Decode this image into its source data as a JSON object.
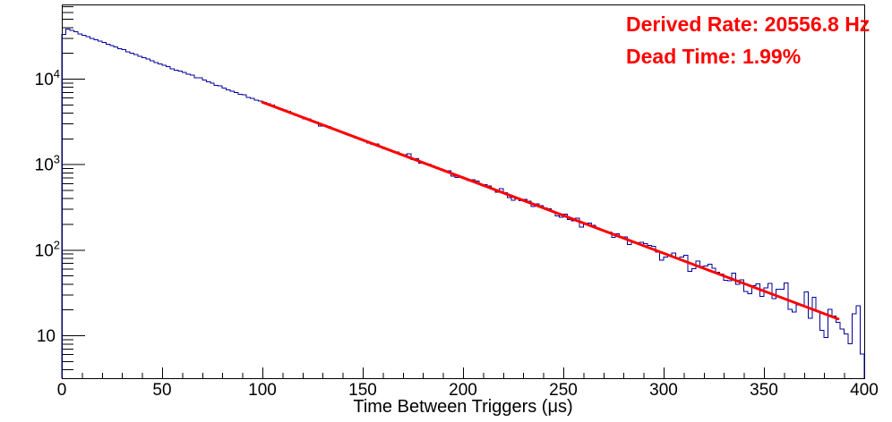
{
  "annotation": {
    "line1": "Derived Rate: 20556.8 Hz",
    "line2": "Dead Time: 1.99%",
    "color": "#ff0000"
  },
  "chart_data": {
    "type": "histogram",
    "title": "",
    "xlabel": "Time Between Triggers (μs)",
    "ylabel": "",
    "yscale": "log",
    "xlim": [
      0,
      400
    ],
    "ylim": [
      3.15,
      73600
    ],
    "x_ticks_major": [
      0,
      50,
      100,
      150,
      200,
      250,
      300,
      350,
      400
    ],
    "x_minor_step": 10,
    "y_ticks_major": [
      10,
      100,
      1000,
      10000
    ],
    "y_tick_labels": [
      "10",
      "10^2",
      "10^3",
      "10^4"
    ],
    "grid": false,
    "legend": null,
    "hist_color": "#000099",
    "axis_color": "#000000",
    "background_color": "#ffffff",
    "bin_width_us": 2,
    "n_bins": 200,
    "histogram_model": {
      "amplitude": 40500,
      "decay_per_us": 0.02033,
      "first_bin_value": 33000,
      "poisson_noise": true,
      "noise_seed": 42,
      "last_bins_override": {
        "198": 22,
        "199": 6
      }
    },
    "readings_approx": [
      {
        "t": 3,
        "counts": 38000
      },
      {
        "t": 50,
        "counts": 14600
      },
      {
        "t": 100,
        "counts": 5300
      },
      {
        "t": 150,
        "counts": 1920
      },
      {
        "t": 200,
        "counts": 700
      },
      {
        "t": 250,
        "counts": 250
      },
      {
        "t": 300,
        "counts": 91
      },
      {
        "t": 350,
        "counts": 33
      },
      {
        "t": 400,
        "counts": 12
      }
    ],
    "fit": {
      "range_us": [
        100,
        387
      ],
      "amplitude": 40500,
      "decay_per_us": 0.02033,
      "color": "#ff0000",
      "line_width": 3
    }
  }
}
